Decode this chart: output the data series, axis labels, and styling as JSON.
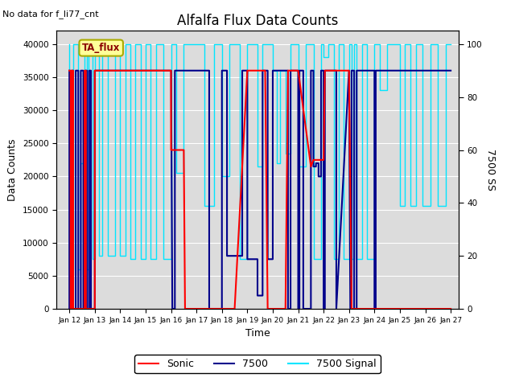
{
  "title": "Alfalfa Flux Data Counts",
  "subtitle": "No data for f_li77_cnt",
  "xlabel": "Time",
  "ylabel_left": "Data Counts",
  "ylabel_right": "7500 SS",
  "xlim": [
    11.5,
    27.3
  ],
  "ylim_left": [
    0,
    42000
  ],
  "ylim_right": [
    0,
    105
  ],
  "xticks": [
    12,
    13,
    14,
    15,
    16,
    17,
    18,
    19,
    20,
    21,
    22,
    23,
    24,
    25,
    26,
    27
  ],
  "xtick_labels": [
    "Jan 12",
    "Jan 13",
    "Jan 14",
    "Jan 15",
    "Jan 16",
    "Jan 17",
    "Jan 18",
    "Jan 19",
    "Jan 20",
    "Jan 21",
    "Jan 22",
    "Jan 23",
    "Jan 24",
    "Jan 25",
    "Jan 26",
    "Jan 27"
  ],
  "yticks_left": [
    0,
    5000,
    10000,
    15000,
    20000,
    25000,
    30000,
    35000,
    40000
  ],
  "yticks_right": [
    0,
    20,
    40,
    60,
    80,
    100
  ],
  "bg_color": "#dcdcdc",
  "sonic_color": "#ff0000",
  "li7500_color": "#00008b",
  "signal_color": "#00e5ff",
  "legend_box_color": "#ffff99",
  "legend_box_edge": "#aaaa00",
  "annotation_text": "TA_flux",
  "sonic_data_x": [
    12.0,
    12.05,
    12.05,
    12.1,
    12.1,
    12.15,
    12.15,
    12.6,
    12.6,
    12.65,
    12.65,
    13.0,
    13.0,
    13.4,
    13.4,
    16.0,
    16.0,
    16.5,
    16.5,
    16.55,
    16.55,
    18.0,
    18.0,
    18.5,
    18.5,
    19.0,
    19.0,
    19.7,
    19.7,
    19.8,
    19.8,
    20.0,
    20.0,
    20.5,
    20.5,
    20.6,
    20.6,
    20.8,
    20.8,
    21.0,
    21.0,
    21.5,
    21.5,
    21.6,
    21.6,
    21.8,
    21.8,
    22.0,
    22.0,
    22.05,
    22.05,
    22.5,
    22.5,
    23.0,
    23.0,
    23.1,
    23.1,
    23.5,
    23.5,
    24.0,
    24.0,
    27.0
  ],
  "sonic_data_y": [
    36000,
    36000,
    0,
    0,
    36000,
    36000,
    0,
    0,
    36000,
    36000,
    0,
    0,
    36000,
    36000,
    36000,
    36000,
    24000,
    24000,
    24000,
    0,
    0,
    0,
    0,
    0,
    0,
    36000,
    36000,
    36000,
    36000,
    0,
    0,
    0,
    0,
    0,
    0,
    36000,
    36000,
    36000,
    36000,
    36000,
    36000,
    21500,
    21500,
    22500,
    22500,
    22500,
    22500,
    22500,
    22500,
    36000,
    36000,
    36000,
    36000,
    36000,
    36000,
    0,
    0,
    0,
    0,
    0,
    0,
    0
  ],
  "li7500_data_x": [
    12.0,
    12.0,
    12.08,
    12.08,
    12.15,
    12.15,
    12.25,
    12.25,
    12.35,
    12.35,
    12.45,
    12.45,
    12.55,
    12.55,
    12.62,
    12.62,
    12.7,
    12.7,
    12.78,
    12.78,
    12.85,
    12.85,
    13.0,
    13.0,
    13.0,
    16.0,
    16.0,
    16.05,
    16.05,
    16.15,
    16.15,
    17.0,
    17.0,
    17.5,
    17.5,
    18.0,
    18.0,
    18.2,
    18.2,
    18.8,
    18.8,
    19.0,
    19.0,
    19.4,
    19.4,
    19.6,
    19.6,
    19.8,
    19.8,
    20.0,
    20.0,
    20.5,
    20.5,
    20.6,
    20.6,
    20.7,
    20.7,
    21.0,
    21.0,
    21.05,
    21.05,
    21.2,
    21.2,
    21.5,
    21.5,
    21.6,
    21.6,
    21.7,
    21.7,
    21.8,
    21.8,
    21.9,
    21.9,
    22.0,
    22.0,
    22.05,
    22.05,
    22.5,
    22.5,
    22.5,
    23.0,
    23.0,
    23.05,
    23.05,
    23.1,
    23.1,
    23.2,
    23.2,
    23.3,
    23.3,
    24.0,
    24.0,
    24.05,
    24.05,
    25.0,
    25.0,
    27.0
  ],
  "li7500_data_y": [
    36000,
    0,
    0,
    36000,
    36000,
    0,
    0,
    36000,
    36000,
    0,
    0,
    36000,
    36000,
    0,
    0,
    36000,
    36000,
    0,
    0,
    36000,
    36000,
    0,
    0,
    36000,
    36000,
    36000,
    36000,
    0,
    0,
    0,
    36000,
    36000,
    36000,
    36000,
    0,
    0,
    36000,
    36000,
    8000,
    8000,
    36000,
    36000,
    7500,
    7500,
    2000,
    2000,
    36000,
    36000,
    7500,
    7500,
    36000,
    36000,
    36000,
    36000,
    0,
    0,
    36000,
    36000,
    0,
    0,
    36000,
    36000,
    0,
    0,
    36000,
    36000,
    21500,
    21500,
    22000,
    22000,
    20000,
    20000,
    36000,
    36000,
    0,
    0,
    36000,
    36000,
    0,
    0,
    36000,
    36000,
    0,
    0,
    0,
    36000,
    36000,
    0,
    0,
    36000,
    36000,
    0,
    0,
    36000,
    36000,
    36000,
    36000
  ],
  "signal_data_x": [
    12.0,
    12.0,
    12.15,
    12.15,
    12.35,
    12.35,
    12.45,
    12.45,
    12.6,
    12.6,
    12.7,
    12.7,
    12.75,
    12.75,
    12.9,
    12.9,
    13.0,
    13.0,
    13.15,
    13.15,
    13.3,
    13.3,
    13.5,
    13.5,
    13.8,
    13.8,
    14.0,
    14.0,
    14.2,
    14.2,
    14.4,
    14.4,
    14.6,
    14.6,
    14.8,
    14.8,
    15.0,
    15.0,
    15.2,
    15.2,
    15.4,
    15.4,
    15.7,
    15.7,
    16.0,
    16.0,
    16.2,
    16.2,
    16.5,
    16.5,
    16.8,
    16.8,
    17.0,
    17.0,
    17.3,
    17.3,
    17.7,
    17.7,
    18.0,
    18.0,
    18.3,
    18.3,
    18.7,
    18.7,
    19.0,
    19.0,
    19.4,
    19.4,
    19.6,
    19.6,
    19.9,
    19.9,
    20.0,
    20.0,
    20.15,
    20.15,
    20.3,
    20.3,
    20.5,
    20.5,
    20.7,
    20.7,
    21.0,
    21.0,
    21.3,
    21.3,
    21.6,
    21.6,
    21.9,
    21.9,
    22.0,
    22.0,
    22.2,
    22.2,
    22.4,
    22.4,
    22.6,
    22.6,
    22.8,
    22.8,
    23.0,
    23.0,
    23.1,
    23.1,
    23.2,
    23.2,
    23.3,
    23.3,
    23.5,
    23.5,
    23.7,
    23.7,
    24.0,
    24.0,
    24.2,
    24.2,
    24.5,
    24.5,
    24.7,
    24.7,
    24.85,
    24.85,
    25.0,
    25.0,
    25.2,
    25.2,
    25.4,
    25.4,
    25.65,
    25.65,
    25.9,
    25.9,
    26.2,
    26.2,
    26.5,
    26.5,
    26.8,
    26.8,
    27.0
  ],
  "signal_data_y": [
    40000,
    6000,
    6000,
    40000,
    40000,
    6000,
    6000,
    22000,
    22000,
    40000,
    40000,
    6000,
    6000,
    40000,
    40000,
    7500,
    7500,
    40000,
    40000,
    8000,
    8000,
    40000,
    40000,
    8000,
    8000,
    40000,
    40000,
    8000,
    8000,
    40000,
    40000,
    7500,
    7500,
    40000,
    40000,
    7500,
    7500,
    40000,
    40000,
    7500,
    7500,
    40000,
    40000,
    7500,
    7500,
    40000,
    40000,
    20500,
    20500,
    40000,
    40000,
    40000,
    40000,
    40000,
    40000,
    15500,
    15500,
    40000,
    40000,
    20000,
    20000,
    40000,
    40000,
    7500,
    7500,
    40000,
    40000,
    21500,
    21500,
    40000,
    40000,
    40000,
    40000,
    36000,
    36000,
    22000,
    22000,
    36000,
    36000,
    23500,
    23500,
    40000,
    40000,
    21500,
    21500,
    40000,
    40000,
    7500,
    7500,
    40000,
    40000,
    38000,
    38000,
    40000,
    40000,
    7500,
    7500,
    40000,
    40000,
    7500,
    7500,
    40000,
    40000,
    7500,
    7500,
    40000,
    40000,
    7500,
    7500,
    40000,
    40000,
    7500,
    7500,
    40000,
    40000,
    33000,
    33000,
    40000,
    40000,
    40000,
    40000,
    40000,
    40000,
    15500,
    15500,
    40000,
    40000,
    15500,
    15500,
    40000,
    40000,
    15500,
    15500,
    40000,
    40000,
    15500,
    15500,
    40000,
    40000
  ]
}
